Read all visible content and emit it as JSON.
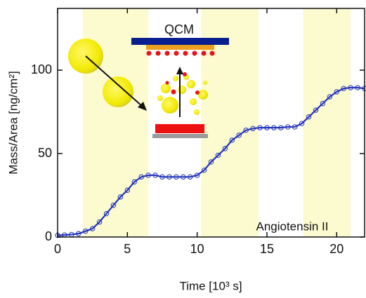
{
  "chart_data": {
    "type": "line",
    "x_label": "Time [10³ s]",
    "y_label": "Mass/Area [ng/cm²]",
    "annotations": [
      "QCM",
      "Angiotensin II"
    ],
    "x": [
      0,
      0.5,
      1,
      1.5,
      2,
      2.5,
      3,
      3.5,
      4,
      4.5,
      5,
      5.5,
      6,
      6.5,
      7,
      7.5,
      8,
      8.5,
      9,
      9.5,
      10,
      10.5,
      11,
      11.5,
      12,
      12.5,
      13,
      13.5,
      14,
      14.5,
      15,
      15.5,
      16,
      16.5,
      17,
      17.5,
      18,
      18.5,
      19,
      19.5,
      20,
      20.5,
      21,
      21.5,
      22
    ],
    "values": [
      1,
      1.2,
      1.5,
      2,
      3.5,
      5,
      9,
      14,
      19,
      24,
      28,
      33,
      36,
      37,
      37,
      36,
      36,
      36,
      36,
      36,
      37,
      40,
      45,
      49,
      53,
      58,
      61,
      64,
      65,
      65.5,
      65.5,
      65.5,
      65.5,
      66,
      66,
      68,
      72,
      76,
      80,
      84,
      87,
      89,
      89.5,
      89.5,
      89
    ],
    "color": "#2233bb",
    "shaded_regions": [
      [
        1.8,
        6.5
      ],
      [
        10.3,
        14.4
      ],
      [
        17.6,
        21
      ]
    ],
    "shade_color": "#fbfbcf",
    "xlim": [
      0,
      22
    ],
    "ylim": [
      0,
      137
    ],
    "xticks": [
      0,
      5,
      10,
      15,
      20
    ],
    "yticks": [
      0,
      50,
      100
    ]
  }
}
